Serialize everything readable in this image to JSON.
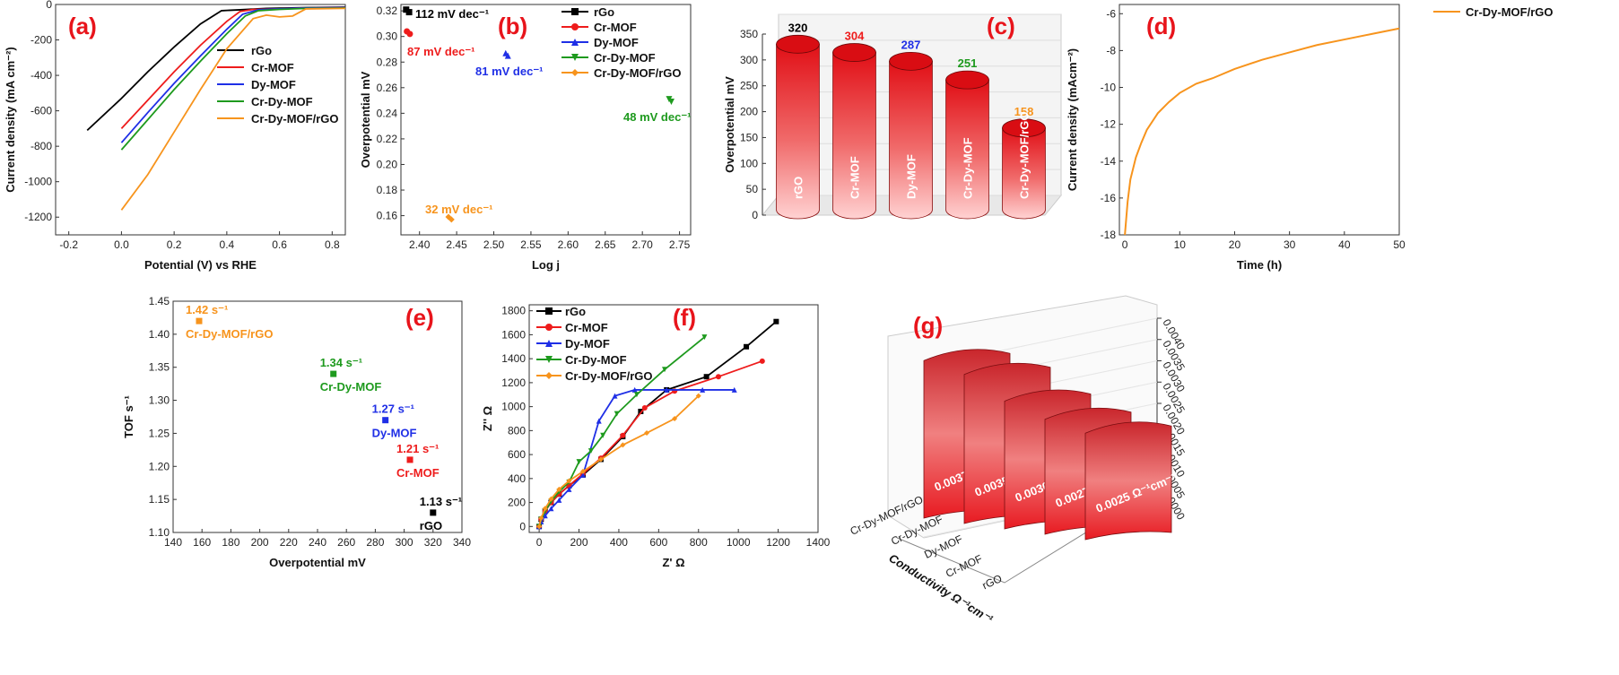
{
  "colors": {
    "rgo": "#000000",
    "cr": "#ee1c1c",
    "dy": "#1f2fe6",
    "crdy": "#1e9a1e",
    "comp": "#f7941d",
    "panel": "#e8141b"
  },
  "chart_data": [
    {
      "id": "a",
      "type": "line",
      "panel_label": "(a)",
      "xlabel": "Potential (V) vs RHE",
      "ylabel": "Current density (mA cm⁻²)",
      "xlim": [
        -0.25,
        0.85
      ],
      "ylim": [
        -1300,
        0
      ],
      "xticks": [
        -0.2,
        0,
        0.2,
        0.4,
        0.6,
        0.8
      ],
      "xtick_labels": [
        "-0.2",
        "0.0",
        "0.2",
        "0.4",
        "0.6",
        "0.8"
      ],
      "yticks": [
        0,
        -200,
        -400,
        -600,
        -800,
        -1000,
        -1200
      ],
      "ytick_labels": [
        "0",
        "-200",
        "-400",
        "-600",
        "-800",
        "-1000",
        "-1200"
      ],
      "series": [
        {
          "name": "rGo",
          "color": "#000000",
          "x": [
            -0.13,
            0.0,
            0.1,
            0.2,
            0.3,
            0.38,
            0.45,
            0.55,
            0.7,
            0.85
          ],
          "y": [
            -710,
            -530,
            -380,
            -240,
            -110,
            -35,
            -30,
            -22,
            -18,
            -15
          ]
        },
        {
          "name": "Cr-MOF",
          "color": "#ee1c1c",
          "x": [
            0.0,
            0.1,
            0.2,
            0.3,
            0.4,
            0.45,
            0.5,
            0.6,
            0.7,
            0.85
          ],
          "y": [
            -700,
            -540,
            -380,
            -230,
            -95,
            -40,
            -28,
            -25,
            -20,
            -18
          ]
        },
        {
          "name": "Dy-MOF",
          "color": "#1f2fe6",
          "x": [
            0.0,
            0.1,
            0.2,
            0.3,
            0.4,
            0.46,
            0.52,
            0.6,
            0.7,
            0.85
          ],
          "y": [
            -780,
            -610,
            -445,
            -290,
            -140,
            -55,
            -30,
            -25,
            -20,
            -18
          ]
        },
        {
          "name": "Cr-Dy-MOF",
          "color": "#1e9a1e",
          "x": [
            0.0,
            0.1,
            0.2,
            0.3,
            0.4,
            0.47,
            0.52,
            0.6,
            0.7,
            0.85
          ],
          "y": [
            -820,
            -650,
            -480,
            -320,
            -165,
            -65,
            -35,
            -28,
            -22,
            -20
          ]
        },
        {
          "name": "Cr-Dy-MOF/rGO",
          "color": "#f7941d",
          "x": [
            0.0,
            0.1,
            0.2,
            0.3,
            0.4,
            0.5,
            0.55,
            0.6,
            0.65,
            0.7,
            0.85
          ],
          "y": [
            -1160,
            -960,
            -720,
            -480,
            -250,
            -80,
            -60,
            -70,
            -65,
            -25,
            -22
          ]
        }
      ]
    },
    {
      "id": "b",
      "type": "scatter",
      "panel_label": "(b)",
      "xlabel": "Log j",
      "ylabel": "Overpotential mV",
      "xlim": [
        2.375,
        2.765
      ],
      "ylim": [
        0.145,
        0.325
      ],
      "xticks": [
        2.4,
        2.45,
        2.5,
        2.55,
        2.6,
        2.65,
        2.7,
        2.75
      ],
      "xtick_labels": [
        "2.40",
        "2.45",
        "2.50",
        "2.55",
        "2.60",
        "2.65",
        "2.70",
        "2.75"
      ],
      "yticks": [
        0.16,
        0.18,
        0.2,
        0.22,
        0.24,
        0.26,
        0.28,
        0.3,
        0.32
      ],
      "ytick_labels": [
        "0.16",
        "0.18",
        "0.20",
        "0.22",
        "0.24",
        "0.26",
        "0.28",
        "0.30",
        "0.32"
      ],
      "series": [
        {
          "name": "rGo",
          "color": "#000000",
          "x": [
            2.382,
            2.386
          ],
          "y": [
            0.321,
            0.319
          ]
        },
        {
          "name": "Cr-MOF",
          "color": "#ee1c1c",
          "x": [
            2.383,
            2.387
          ],
          "y": [
            0.304,
            0.302
          ]
        },
        {
          "name": "Dy-MOF",
          "color": "#1f2fe6",
          "x": [
            2.516,
            2.519
          ],
          "y": [
            0.287,
            0.285
          ]
        },
        {
          "name": "Cr-Dy-MOF",
          "color": "#1e9a1e",
          "x": [
            2.736,
            2.739
          ],
          "y": [
            0.251,
            0.249
          ]
        },
        {
          "name": "Cr-Dy-MOF/rGO",
          "color": "#f7941d",
          "x": [
            2.439,
            2.443
          ],
          "y": [
            0.159,
            0.157
          ]
        }
      ],
      "annotations": [
        "112 mV dec⁻¹",
        "87 mV dec⁻¹",
        "81 mV dec⁻¹",
        "48 mV dec⁻¹",
        "32 mV dec⁻¹"
      ]
    },
    {
      "id": "c",
      "type": "bar",
      "panel_label": "(c)",
      "ylabel": "Overpotential mV",
      "ylim": [
        0,
        350
      ],
      "yticks": [
        0,
        50,
        100,
        150,
        200,
        250,
        300,
        350
      ],
      "ytick_labels": [
        "0",
        "50",
        "100",
        "150",
        "200",
        "250",
        "300",
        "350"
      ],
      "categories": [
        "rGO",
        "Cr-MOF",
        "Dy-MOF",
        "Cr-Dy-MOF",
        "Cr-Dy-MOF/rGO"
      ],
      "values": [
        320,
        304,
        287,
        251,
        158
      ],
      "value_labels": [
        "320",
        "304",
        "287",
        "251",
        "158"
      ]
    },
    {
      "id": "d",
      "type": "line",
      "panel_label": "(d)",
      "xlabel": "Time (h)",
      "ylabel": "Current density (mAcm⁻²)",
      "xlim": [
        -1,
        50
      ],
      "ylim": [
        -18,
        -5.5
      ],
      "xticks": [
        0,
        10,
        20,
        30,
        40,
        50
      ],
      "xtick_labels": [
        "0",
        "10",
        "20",
        "30",
        "40",
        "50"
      ],
      "yticks": [
        -6,
        -8,
        -10,
        -12,
        -14,
        -16,
        -18
      ],
      "ytick_labels": [
        "-6",
        "-8",
        "-10",
        "-12",
        "-14",
        "-16",
        "-18"
      ],
      "series": [
        {
          "name": "Cr-Dy-MOF/rGO",
          "color": "#f7941d",
          "x": [
            0,
            0.5,
            1,
            2,
            3,
            4,
            6,
            8,
            10,
            13,
            16,
            20,
            25,
            30,
            35,
            40,
            45,
            50
          ],
          "y": [
            -18,
            -16.2,
            -15,
            -13.8,
            -13,
            -12.3,
            -11.4,
            -10.8,
            -10.3,
            -9.8,
            -9.5,
            -9.0,
            -8.5,
            -8.1,
            -7.7,
            -7.4,
            -7.1,
            -6.8
          ]
        }
      ]
    },
    {
      "id": "e",
      "type": "scatter",
      "panel_label": "(e)",
      "xlabel": "Overpotential mV",
      "ylabel": "TOF s⁻¹",
      "xlim": [
        140,
        340
      ],
      "ylim": [
        1.1,
        1.45
      ],
      "xticks": [
        140,
        160,
        180,
        200,
        220,
        240,
        260,
        280,
        300,
        320,
        340
      ],
      "xtick_labels": [
        "140",
        "160",
        "180",
        "200",
        "220",
        "240",
        "260",
        "280",
        "300",
        "320",
        "340"
      ],
      "yticks": [
        1.1,
        1.15,
        1.2,
        1.25,
        1.3,
        1.35,
        1.4,
        1.45
      ],
      "ytick_labels": [
        "1.10",
        "1.15",
        "1.20",
        "1.25",
        "1.30",
        "1.35",
        "1.40",
        "1.45"
      ],
      "points": [
        {
          "name": "Cr-Dy-MOF/rGO",
          "value_label": "1.42 s⁻¹",
          "color": "#f7941d",
          "x": 158,
          "y": 1.42
        },
        {
          "name": "Cr-Dy-MOF",
          "value_label": "1.34 s⁻¹",
          "color": "#1e9a1e",
          "x": 251,
          "y": 1.34
        },
        {
          "name": "Dy-MOF",
          "value_label": "1.27 s⁻¹",
          "color": "#1f2fe6",
          "x": 287,
          "y": 1.27
        },
        {
          "name": "Cr-MOF",
          "value_label": "1.21 s⁻¹",
          "color": "#ee1c1c",
          "x": 304,
          "y": 1.21
        },
        {
          "name": "rGO",
          "value_label": "1.13 s⁻¹",
          "color": "#000000",
          "x": 320,
          "y": 1.13
        }
      ]
    },
    {
      "id": "f",
      "type": "line",
      "panel_label": "(f)",
      "xlabel": "Z' Ω",
      "ylabel": "Z'' Ω",
      "xlim": [
        -50,
        1400
      ],
      "ylim": [
        -50,
        1850
      ],
      "xticks": [
        0,
        200,
        400,
        600,
        800,
        1000,
        1200,
        1400
      ],
      "xtick_labels": [
        "0",
        "200",
        "400",
        "600",
        "800",
        "1000",
        "1200",
        "1400"
      ],
      "yticks": [
        0,
        200,
        400,
        600,
        800,
        1000,
        1200,
        1400,
        1600,
        1800
      ],
      "ytick_labels": [
        "0",
        "200",
        "400",
        "600",
        "800",
        "1000",
        "1200",
        "1400",
        "1600",
        "1800"
      ],
      "series": [
        {
          "name": "rGo",
          "color": "#000000",
          "x": [
            0,
            10,
            30,
            60,
            100,
            150,
            220,
            310,
            420,
            510,
            640,
            840,
            1040,
            1190
          ],
          "y": [
            0,
            60,
            130,
            200,
            270,
            340,
            430,
            560,
            750,
            960,
            1140,
            1250,
            1500,
            1710
          ]
        },
        {
          "name": "Cr-MOF",
          "color": "#ee1c1c",
          "x": [
            0,
            10,
            30,
            60,
            100,
            150,
            220,
            310,
            420,
            530,
            680,
            900,
            1120
          ],
          "y": [
            0,
            60,
            130,
            200,
            270,
            340,
            440,
            570,
            760,
            990,
            1130,
            1250,
            1380
          ]
        },
        {
          "name": "Dy-MOF",
          "color": "#1f2fe6",
          "x": [
            0,
            10,
            30,
            60,
            100,
            150,
            220,
            300,
            380,
            480,
            640,
            820,
            980
          ],
          "y": [
            0,
            40,
            90,
            150,
            220,
            310,
            430,
            880,
            1090,
            1140,
            1140,
            1140,
            1140
          ]
        },
        {
          "name": "Cr-Dy-MOF",
          "color": "#1e9a1e",
          "x": [
            0,
            10,
            30,
            60,
            100,
            150,
            200,
            260,
            320,
            390,
            490,
            630,
            830
          ],
          "y": [
            0,
            60,
            130,
            210,
            290,
            370,
            540,
            630,
            760,
            940,
            1100,
            1310,
            1580
          ]
        },
        {
          "name": "Cr-Dy-MOF/rGO",
          "color": "#f7941d",
          "x": [
            0,
            10,
            30,
            60,
            100,
            150,
            220,
            310,
            420,
            540,
            680,
            800
          ],
          "y": [
            0,
            70,
            150,
            230,
            310,
            380,
            460,
            560,
            680,
            780,
            900,
            1090
          ]
        }
      ]
    },
    {
      "id": "g",
      "type": "bar",
      "panel_label": "(g)",
      "zlabel": "Conductivity Ω⁻¹cm⁻¹",
      "zlim": [
        0,
        0.004
      ],
      "zticks": [
        0,
        0.0005,
        0.001,
        0.0015,
        0.002,
        0.0025,
        0.003,
        0.0035,
        0.004
      ],
      "ztick_labels": [
        "0.0000",
        "0.0005",
        "0.0010",
        "0.0015",
        "0.0020",
        "0.0025",
        "0.0030",
        "0.0035",
        "0.0040"
      ],
      "categories": [
        "Cr-Dy-MOF/rGO",
        "Cr-Dy-MOF",
        "Dy-MOF",
        "Cr-MOF",
        "rGO"
      ],
      "values": [
        0.0037,
        0.0035,
        0.003,
        0.0027,
        0.0025
      ],
      "value_labels": [
        "0.0037 Ω⁻¹cm⁻¹",
        "0.0035 Ω⁻¹cm⁻¹",
        "0.0030 Ω⁻¹cm⁻¹",
        "0.0027 Ω⁻¹cm⁻¹",
        "0.0025 Ω⁻¹cm⁻¹"
      ],
      "axis_label": "Conductivity Ω⁻¹cm⁻¹"
    }
  ]
}
